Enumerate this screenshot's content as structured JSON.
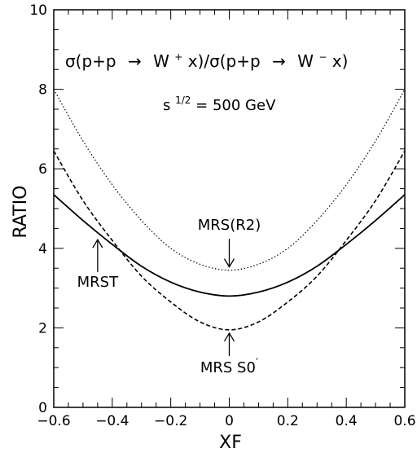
{
  "chart_data": {
    "type": "line",
    "title": "σ(p+p → W⁺ x)/σ(p+p → W⁻ x)",
    "formula": {
      "sigma1": "σ(p+p",
      "arrow": "→",
      "w_plus": "W",
      "sup_plus": "+",
      "mid": " x)/σ(p+p",
      "w_minus": "W",
      "sup_minus": "−",
      "end": " x)"
    },
    "energy": {
      "lhs": "s",
      "sup": "1/2",
      "rhs": " = 500 GeV"
    },
    "xlabel": "XF",
    "ylabel": "RATIO",
    "xlim": [
      -0.6,
      0.6
    ],
    "ylim": [
      0,
      10
    ],
    "xticks": [
      -0.6,
      -0.4,
      -0.2,
      0,
      0.2,
      0.4,
      0.6
    ],
    "xtick_labels": [
      "−0.6",
      "−0.4",
      "−0.2",
      "0",
      "0.2",
      "0.4",
      "0.6"
    ],
    "yticks": [
      0,
      2,
      4,
      6,
      8,
      10
    ],
    "ytick_labels": [
      "0",
      "2",
      "4",
      "6",
      "8",
      "10"
    ],
    "grid": false,
    "series": [
      {
        "name": "MRS(R2)",
        "style": "dotted",
        "x": [
          -0.6,
          -0.5,
          -0.4,
          -0.3,
          -0.2,
          -0.1,
          0,
          0.1,
          0.2,
          0.3,
          0.4,
          0.5,
          0.6
        ],
        "y": [
          8.0,
          6.7,
          5.6,
          4.7,
          4.0,
          3.6,
          3.45,
          3.6,
          4.0,
          4.7,
          5.6,
          6.7,
          8.0
        ]
      },
      {
        "name": "MRST",
        "style": "solid",
        "x": [
          -0.6,
          -0.5,
          -0.4,
          -0.3,
          -0.2,
          -0.1,
          0,
          0.1,
          0.2,
          0.3,
          0.4,
          0.5,
          0.6
        ],
        "y": [
          5.35,
          4.7,
          4.1,
          3.55,
          3.15,
          2.9,
          2.8,
          2.9,
          3.15,
          3.55,
          4.1,
          4.7,
          5.35
        ]
      },
      {
        "name": "MRS S0′",
        "style": "dashed",
        "x": [
          -0.6,
          -0.5,
          -0.4,
          -0.3,
          -0.2,
          -0.1,
          0,
          0.1,
          0.2,
          0.3,
          0.4,
          0.5,
          0.6
        ],
        "y": [
          6.45,
          5.2,
          4.2,
          3.3,
          2.65,
          2.15,
          1.95,
          2.15,
          2.65,
          3.3,
          4.2,
          5.2,
          6.45
        ]
      }
    ],
    "annotations": [
      {
        "text": "MRS(R2)",
        "x": 0.0,
        "y": 3.45
      },
      {
        "text": "MRST",
        "x": -0.45,
        "y": 4.3
      },
      {
        "text": "MRS S0",
        "suffix": "′",
        "x": 0.0,
        "y": 1.95
      }
    ]
  }
}
